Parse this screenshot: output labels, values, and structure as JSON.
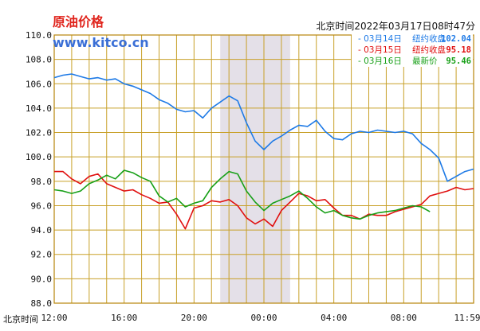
{
  "header": {
    "title": "原油价格",
    "brand": "www.kitco.cn",
    "timestamp": "北京时间2022年03月17日08时47分",
    "x_axis_prefix": "北京时间"
  },
  "legend": [
    {
      "text": "- 03月14日",
      "label": "纽约收盘",
      "value": "102.04",
      "color": "#1e7ae6"
    },
    {
      "text": "- 03月15日",
      "label": "纽约收盘",
      "value": "95.18",
      "color": "#e01010"
    },
    {
      "text": "- 03月16日",
      "label": "最新价",
      "value": "95.46",
      "color": "#18a018"
    }
  ],
  "colors": {
    "plot_border": "#b8860b",
    "grid": "#c8a028",
    "shade": "#e4e0e8",
    "tick_text": "#111111"
  },
  "chart_data": {
    "type": "line",
    "title": "原油价格",
    "ylim": [
      88.0,
      110.0
    ],
    "y_ticks": [
      "110.0",
      "108.0",
      "106.0",
      "104.0",
      "102.0",
      "100.0",
      "98.0",
      "96.0",
      "94.0",
      "92.0",
      "90.0",
      "88.0"
    ],
    "x_ticks": [
      "12:00",
      "16:00",
      "20:00",
      "00:00",
      "04:00",
      "08:00",
      "11:59"
    ],
    "x_range_hours": [
      0,
      24
    ],
    "grid": true,
    "legend_position": "top-right",
    "shaded_x_range_hours": [
      9.5,
      13.5
    ],
    "series": [
      {
        "name": "03月14日",
        "x": [
          0,
          0.5,
          1,
          1.5,
          2,
          2.5,
          3,
          3.5,
          4,
          4.5,
          5,
          5.5,
          6,
          6.5,
          7,
          7.5,
          8,
          8.5,
          9,
          9.5,
          10,
          10.5,
          11,
          11.5,
          12,
          12.5,
          13,
          13.5,
          14,
          14.5,
          15,
          15.5,
          16,
          16.5,
          17,
          17.5,
          18,
          18.5,
          19,
          19.5,
          20,
          20.5,
          21,
          21.5,
          22,
          22.5,
          23,
          23.5,
          24
        ],
        "values": [
          106.5,
          106.7,
          106.8,
          106.6,
          106.4,
          106.5,
          106.3,
          106.4,
          106.0,
          105.8,
          105.5,
          105.2,
          104.7,
          104.4,
          103.9,
          103.7,
          103.8,
          103.2,
          104.0,
          104.5,
          105.0,
          104.6,
          102.8,
          101.3,
          100.6,
          101.3,
          101.7,
          102.2,
          102.6,
          102.5,
          103.0,
          102.1,
          101.5,
          101.4,
          101.9,
          102.1,
          102.0,
          102.2,
          102.1,
          102.0,
          102.1,
          101.9,
          101.1,
          100.6,
          99.9,
          98.0,
          98.4,
          98.8,
          99.0
        ]
      },
      {
        "name": "03月15日",
        "x": [
          0,
          0.5,
          1,
          1.5,
          2,
          2.5,
          3,
          3.5,
          4,
          4.5,
          5,
          5.5,
          6,
          6.5,
          7,
          7.5,
          8,
          8.5,
          9,
          9.5,
          10,
          10.5,
          11,
          11.5,
          12,
          12.5,
          13,
          13.5,
          14,
          14.5,
          15,
          15.5,
          16,
          16.5,
          17,
          17.5,
          18,
          18.5,
          19,
          19.5,
          20,
          20.5,
          21,
          21.5,
          22,
          22.5,
          23,
          23.5,
          24
        ],
        "values": [
          98.8,
          98.8,
          98.2,
          97.8,
          98.4,
          98.6,
          97.8,
          97.5,
          97.2,
          97.3,
          96.9,
          96.6,
          96.2,
          96.3,
          95.3,
          94.1,
          95.8,
          96.0,
          96.4,
          96.3,
          96.5,
          96.0,
          95.0,
          94.5,
          94.9,
          94.3,
          95.6,
          96.3,
          97.0,
          96.8,
          96.4,
          96.5,
          95.8,
          95.2,
          95.2,
          94.9,
          95.3,
          95.2,
          95.2,
          95.5,
          95.7,
          95.9,
          96.1,
          96.8,
          97.0,
          97.2,
          97.5,
          97.3,
          97.4
        ]
      },
      {
        "name": "03月16日",
        "x": [
          0,
          0.5,
          1,
          1.5,
          2,
          2.5,
          3,
          3.5,
          4,
          4.5,
          5,
          5.5,
          6,
          6.5,
          7,
          7.5,
          8,
          8.5,
          9,
          9.5,
          10,
          10.5,
          11,
          11.5,
          12,
          12.5,
          13,
          13.5,
          14,
          14.5,
          15,
          15.5,
          16,
          16.5,
          17,
          17.5,
          18,
          18.5,
          19,
          19.5,
          20,
          20.5,
          21,
          21.5
        ],
        "values": [
          97.3,
          97.2,
          97.0,
          97.2,
          97.8,
          98.1,
          98.5,
          98.2,
          98.9,
          98.7,
          98.3,
          98.0,
          96.8,
          96.3,
          96.6,
          95.9,
          96.2,
          96.4,
          97.5,
          98.2,
          98.8,
          98.6,
          97.2,
          96.3,
          95.6,
          96.2,
          96.5,
          96.8,
          97.2,
          96.6,
          95.9,
          95.4,
          95.6,
          95.2,
          95.0,
          94.9,
          95.2,
          95.4,
          95.5,
          95.6,
          95.8,
          96.0,
          95.9,
          95.5
        ]
      }
    ]
  }
}
